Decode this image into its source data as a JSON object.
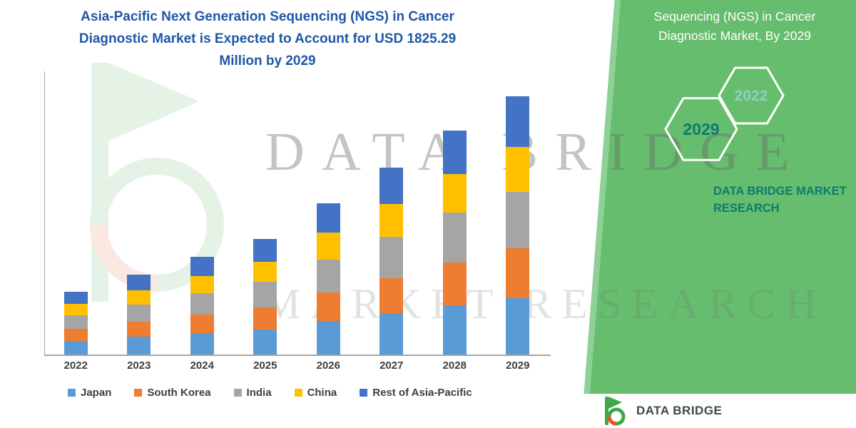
{
  "header": {
    "title_lines": [
      "Asia-Pacific Next Generation Sequencing (NGS) in Cancer",
      "Diagnostic Market is Expected to Account for USD 1825.29",
      "Million by 2029"
    ]
  },
  "right_panel": {
    "heading_lines": [
      "Sequencing (NGS) in Cancer",
      "Diagnostic Market, By 2029"
    ],
    "hexagon_years": [
      "2029",
      "2022"
    ],
    "brand_name": "DATA BRIDGE MARKET RESEARCH"
  },
  "watermark": {
    "line1": "DATA BRIDGE",
    "line2": "MARKET RESEARCH"
  },
  "footer": {
    "brand": "DATA BRIDGE"
  },
  "colors": {
    "green_panel": "#67BD6E",
    "teal_text": "#0B7C6F",
    "title_blue": "#1F57A8",
    "logo_green": "#3FA94A",
    "logo_orange": "#E8531F"
  },
  "chart_data": {
    "type": "bar",
    "stacked": true,
    "title": "Asia-Pacific Next Generation Sequencing (NGS) in Cancer Diagnostic Market is Expected to Account for USD 1825.29 Million by 2029",
    "unit": "USD Million",
    "categories": [
      "2022",
      "2023",
      "2024",
      "2025",
      "2026",
      "2027",
      "2028",
      "2029"
    ],
    "series": [
      {
        "name": "Japan",
        "color": "#5B9BD5",
        "values": [
          97,
          124,
          152,
          179,
          235,
          290,
          350,
          400
        ]
      },
      {
        "name": "South Korea",
        "color": "#ED7D31",
        "values": [
          84,
          107,
          131,
          155,
          203,
          251,
          302,
          350
        ]
      },
      {
        "name": "India",
        "color": "#A5A5A5",
        "values": [
          97,
          124,
          152,
          179,
          235,
          290,
          350,
          400
        ]
      },
      {
        "name": "China",
        "color": "#FFC000",
        "values": [
          77,
          99,
          121,
          143,
          187,
          231,
          272,
          315
        ]
      },
      {
        "name": "Rest of Asia-Pacific",
        "color": "#4472C4",
        "values": [
          86,
          110,
          135,
          159,
          209,
          258,
          306,
          360
        ]
      }
    ],
    "totals_estimated": [
      441,
      564,
      691,
      815,
      1069,
      1320,
      1580,
      1825
    ],
    "final_year_value_label": "USD 1825.29 Million",
    "ylim": [
      0,
      2000
    ],
    "xlabel": "",
    "ylabel": "",
    "grid": false,
    "legend_position": "bottom"
  }
}
